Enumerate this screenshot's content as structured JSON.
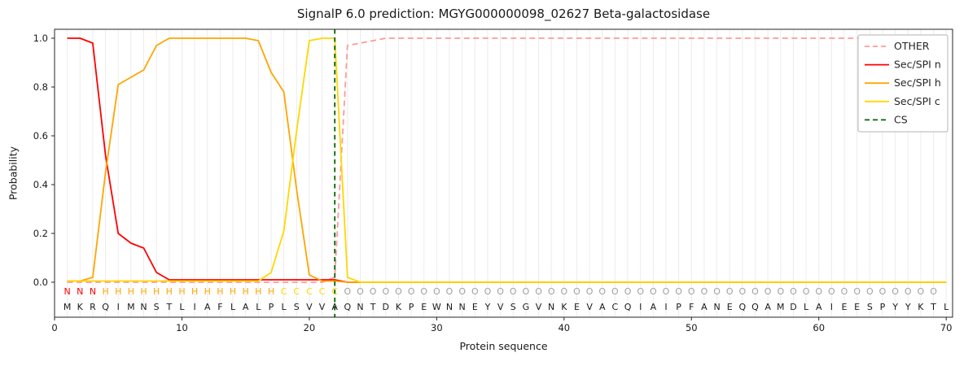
{
  "chart_data": {
    "type": "line",
    "title": "SignalP 6.0 prediction: MGYG000000098_02627 Beta-galactosidase",
    "xlabel": "Protein sequence",
    "ylabel": "Probability",
    "x_ticks": [
      0,
      10,
      20,
      30,
      40,
      50,
      60,
      70
    ],
    "y_ticks": [
      0.0,
      0.2,
      0.4,
      0.6,
      0.8,
      1.0
    ],
    "ylim": [
      0.0,
      1.0
    ],
    "grid": "vertical-per-residue",
    "legend_position": "upper right",
    "sequence": "MKRQIMNSTLIAFLALPLSVVAQNTDKPEWNNEYVSGVNKEVACQIAIPFANEQQAMDLAIEESPYYKTL",
    "region_labels": "NNNHHHHHHHHHHHHHHCCCCCOOOOOOOOOOOOOOOOOOOOOOOOOOOOOOOOOOOOOOOOOOOOOOO",
    "region_colors": {
      "N": "#ff0000",
      "H": "#ffa500",
      "C": "#ffd700",
      "O": "#a0a0a0"
    },
    "cs_position": 22,
    "series": [
      {
        "name": "OTHER",
        "color": "#ff9999",
        "dash": true,
        "values": [
          0,
          0,
          0,
          0,
          0,
          0,
          0,
          0,
          0,
          0,
          0,
          0,
          0,
          0,
          0,
          0,
          0,
          0,
          0,
          0,
          0,
          0.02,
          0.97,
          0.98,
          0.99,
          1.0,
          1.0,
          1.0,
          1.0,
          1.0,
          1.0,
          1.0,
          1.0,
          1.0,
          1.0,
          1.0,
          1.0,
          1.0,
          1.0,
          1.0,
          1.0,
          1.0,
          1.0,
          1.0,
          1.0,
          1.0,
          1.0,
          1.0,
          1.0,
          1.0,
          1.0,
          1.0,
          1.0,
          1.0,
          1.0,
          1.0,
          1.0,
          1.0,
          1.0,
          1.0,
          1.0,
          1.0,
          1.0,
          1.0,
          1.0,
          1.0,
          1.0,
          1.0,
          1.0,
          1.0
        ]
      },
      {
        "name": "Sec/SPI n",
        "color": "#ff0000",
        "dash": false,
        "values": [
          1.0,
          1.0,
          0.98,
          0.52,
          0.2,
          0.16,
          0.14,
          0.04,
          0.01,
          0.01,
          0.01,
          0.01,
          0.01,
          0.01,
          0.01,
          0.01,
          0.01,
          0.01,
          0.01,
          0.01,
          0.01,
          0.01,
          0,
          0,
          0,
          0,
          0,
          0,
          0,
          0,
          0,
          0,
          0,
          0,
          0,
          0,
          0,
          0,
          0,
          0,
          0,
          0,
          0,
          0,
          0,
          0,
          0,
          0,
          0,
          0,
          0,
          0,
          0,
          0,
          0,
          0,
          0,
          0,
          0,
          0,
          0,
          0,
          0,
          0,
          0,
          0,
          0,
          0,
          0,
          0
        ]
      },
      {
        "name": "Sec/SPI h",
        "color": "#ffa500",
        "dash": false,
        "values": [
          0.005,
          0.005,
          0.02,
          0.45,
          0.81,
          0.84,
          0.87,
          0.97,
          1.0,
          1.0,
          1.0,
          1.0,
          1.0,
          1.0,
          1.0,
          0.99,
          0.86,
          0.78,
          0.38,
          0.03,
          0.005,
          0.005,
          0,
          0,
          0,
          0,
          0,
          0,
          0,
          0,
          0,
          0,
          0,
          0,
          0,
          0,
          0,
          0,
          0,
          0,
          0,
          0,
          0,
          0,
          0,
          0,
          0,
          0,
          0,
          0,
          0,
          0,
          0,
          0,
          0,
          0,
          0,
          0,
          0,
          0,
          0,
          0,
          0,
          0,
          0,
          0,
          0,
          0,
          0,
          0
        ]
      },
      {
        "name": "Sec/SPI c",
        "color": "#ffd700",
        "dash": false,
        "values": [
          0.005,
          0.005,
          0.005,
          0.005,
          0.005,
          0.005,
          0.005,
          0.005,
          0.005,
          0.005,
          0.005,
          0.005,
          0.005,
          0.005,
          0.005,
          0.005,
          0.04,
          0.21,
          0.62,
          0.99,
          1.0,
          1.0,
          0.02,
          0,
          0,
          0,
          0,
          0,
          0,
          0,
          0,
          0,
          0,
          0,
          0,
          0,
          0,
          0,
          0,
          0,
          0,
          0,
          0,
          0,
          0,
          0,
          0,
          0,
          0,
          0,
          0,
          0,
          0,
          0,
          0,
          0,
          0,
          0,
          0,
          0,
          0,
          0,
          0,
          0,
          0,
          0,
          0,
          0,
          0,
          0
        ]
      },
      {
        "name": "CS",
        "color": "#006400",
        "dash": true,
        "type": "vline",
        "x": 22
      }
    ]
  }
}
